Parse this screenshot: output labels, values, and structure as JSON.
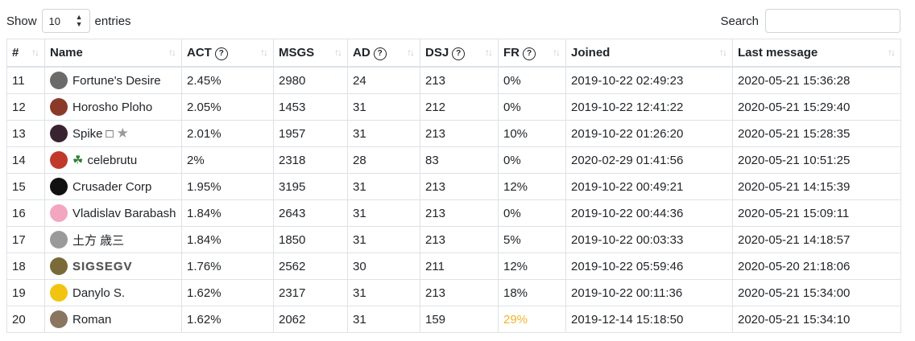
{
  "controls": {
    "show_label": "Show",
    "entries_value": "10",
    "entries_label": "entries",
    "search_label": "Search",
    "search_value": ""
  },
  "table": {
    "headers": [
      {
        "label": "#",
        "help": false
      },
      {
        "label": "Name",
        "help": false
      },
      {
        "label": "ACT",
        "help": true
      },
      {
        "label": "MSGS",
        "help": false
      },
      {
        "label": "AD",
        "help": true
      },
      {
        "label": "DSJ",
        "help": true
      },
      {
        "label": "FR",
        "help": true
      },
      {
        "label": "Joined",
        "help": false
      },
      {
        "label": "Last message",
        "help": false
      }
    ],
    "rows": [
      {
        "rank": "11",
        "name": "Fortune's Desire",
        "act": "2.45%",
        "msgs": "2980",
        "ad": "24",
        "dsj": "213",
        "fr": "0%",
        "joined": "2019-10-22 02:49:23",
        "last": "2020-05-21 15:36:28",
        "avatar_color": "#6b6b6b"
      },
      {
        "rank": "12",
        "name": "Horosho Ploho",
        "act": "2.05%",
        "msgs": "1453",
        "ad": "31",
        "dsj": "212",
        "fr": "0%",
        "joined": "2019-10-22 12:41:22",
        "last": "2020-05-21 15:29:40",
        "avatar_color": "#8b3a2a"
      },
      {
        "rank": "13",
        "name": "Spike",
        "name_suffix": "□",
        "act": "2.01%",
        "msgs": "1957",
        "ad": "31",
        "dsj": "213",
        "fr": "10%",
        "joined": "2019-10-22 01:26:20",
        "last": "2020-05-21 15:28:35",
        "avatar_color": "#3a2330"
      },
      {
        "rank": "14",
        "name": "celebrutu",
        "act": "2%",
        "msgs": "2318",
        "ad": "28",
        "dsj": "83",
        "fr": "0%",
        "joined": "2020-02-29 01:41:56",
        "last": "2020-05-21 10:51:25",
        "avatar_color": "#c0392b"
      },
      {
        "rank": "15",
        "name": "Crusader Corp",
        "act": "1.95%",
        "msgs": "3195",
        "ad": "31",
        "dsj": "213",
        "fr": "12%",
        "joined": "2019-10-22 00:49:21",
        "last": "2020-05-21 14:15:39",
        "avatar_color": "#111111"
      },
      {
        "rank": "16",
        "name": "Vladislav Barabash",
        "act": "1.84%",
        "msgs": "2643",
        "ad": "31",
        "dsj": "213",
        "fr": "0%",
        "joined": "2019-10-22 00:44:36",
        "last": "2020-05-21 15:09:11",
        "avatar_color": "#f3a6c0"
      },
      {
        "rank": "17",
        "name": "土方 歳三",
        "act": "1.84%",
        "msgs": "1850",
        "ad": "31",
        "dsj": "213",
        "fr": "5%",
        "joined": "2019-10-22 00:03:33",
        "last": "2020-05-21 14:18:57",
        "avatar_color": "#9a9a9a"
      },
      {
        "rank": "18",
        "name": "SIGSEGV",
        "act": "1.76%",
        "msgs": "2562",
        "ad": "30",
        "dsj": "211",
        "fr": "12%",
        "joined": "2019-10-22 05:59:46",
        "last": "2020-05-20 21:18:06",
        "avatar_color": "#7a6a3a"
      },
      {
        "rank": "19",
        "name": "Danylo S.",
        "act": "1.62%",
        "msgs": "2317",
        "ad": "31",
        "dsj": "213",
        "fr": "18%",
        "joined": "2019-10-22 00:11:36",
        "last": "2020-05-21 15:34:00",
        "avatar_color": "#f1c40f"
      },
      {
        "rank": "20",
        "name": "Roman",
        "act": "1.62%",
        "msgs": "2062",
        "ad": "31",
        "dsj": "159",
        "fr": "29%",
        "fr_color": "#f0b429",
        "joined": "2019-12-14 15:18:50",
        "last": "2020-05-21 15:34:10",
        "avatar_color": "#8a7560"
      }
    ]
  }
}
